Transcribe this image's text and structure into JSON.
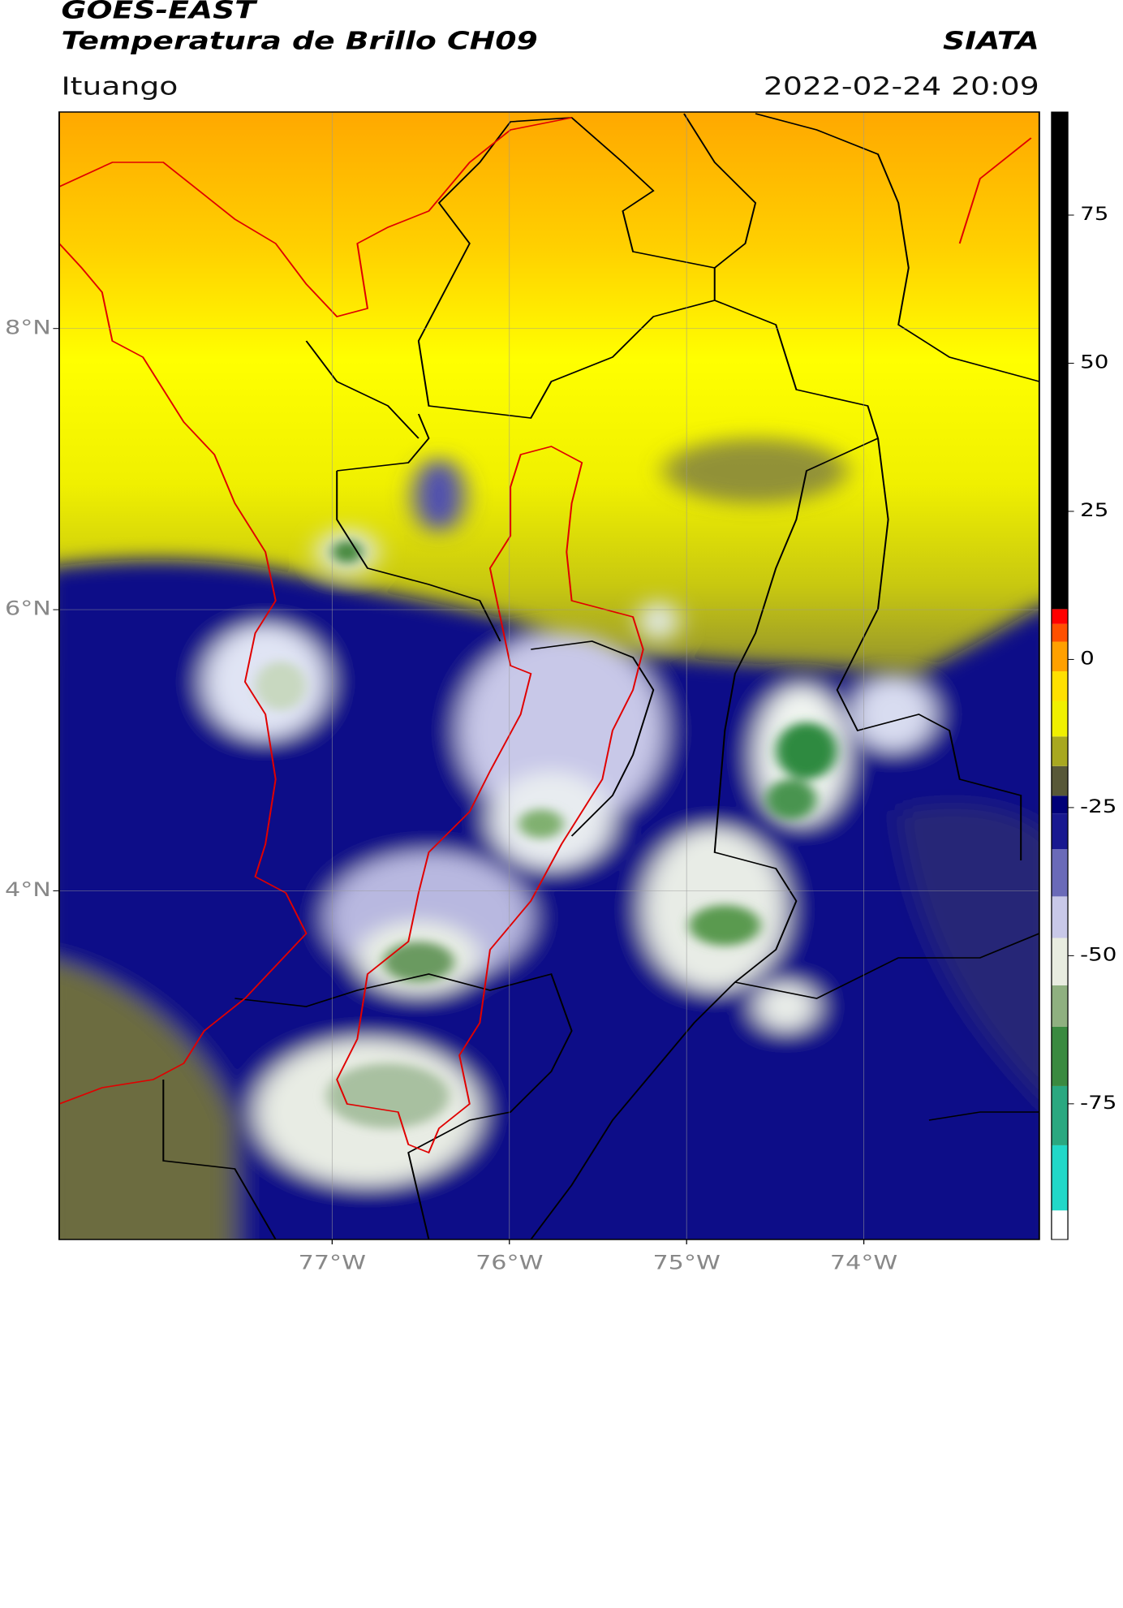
{
  "header": {
    "title": "GOES-EAST",
    "subtitle": "Temperatura de Brillo CH09",
    "agency": "SIATA",
    "location": "Ituango",
    "datetime": "2022-02-24 20:09"
  },
  "map": {
    "lon_lim": [
      -78.54,
      -73.01
    ],
    "lat_lim": [
      1.52,
      9.54
    ],
    "grid": true,
    "lon_ticks": [
      {
        "value": -77,
        "label": "77°W"
      },
      {
        "value": -76,
        "label": "76°W"
      },
      {
        "value": -75,
        "label": "75°W"
      },
      {
        "value": -74,
        "label": "74°W"
      }
    ],
    "lat_ticks": [
      {
        "value": 8,
        "label": "8°N"
      },
      {
        "value": 6,
        "label": "6°N"
      },
      {
        "value": 4,
        "label": "4°N"
      }
    ]
  },
  "colorbar": {
    "lim": [
      -97.9,
      92.4
    ],
    "ticks": [
      75,
      50,
      25,
      0,
      -25,
      -50,
      -75
    ],
    "colormap": [
      {
        "value": -97.9,
        "color": "#ffffff"
      },
      {
        "value": -93,
        "color": "#22d8c8"
      },
      {
        "value": -82,
        "color": "#2aa880"
      },
      {
        "value": -72,
        "color": "#3a8a40"
      },
      {
        "value": -62,
        "color": "#8fb080"
      },
      {
        "value": -55,
        "color": "#e8ece0"
      },
      {
        "value": -47,
        "color": "#c8c8e8"
      },
      {
        "value": -40,
        "color": "#6a6ab8"
      },
      {
        "value": -32,
        "color": "#181890"
      },
      {
        "value": -26,
        "color": "#000078"
      },
      {
        "value": -23,
        "color": "#585838"
      },
      {
        "value": -18,
        "color": "#a8a820"
      },
      {
        "value": -13,
        "color": "#f0f000"
      },
      {
        "value": -7,
        "color": "#ffe000"
      },
      {
        "value": -2,
        "color": "#ffa000"
      },
      {
        "value": 3,
        "color": "#ff5000"
      },
      {
        "value": 6,
        "color": "#ff0000"
      },
      {
        "value": 8.5,
        "color": "#000000"
      }
    ]
  }
}
